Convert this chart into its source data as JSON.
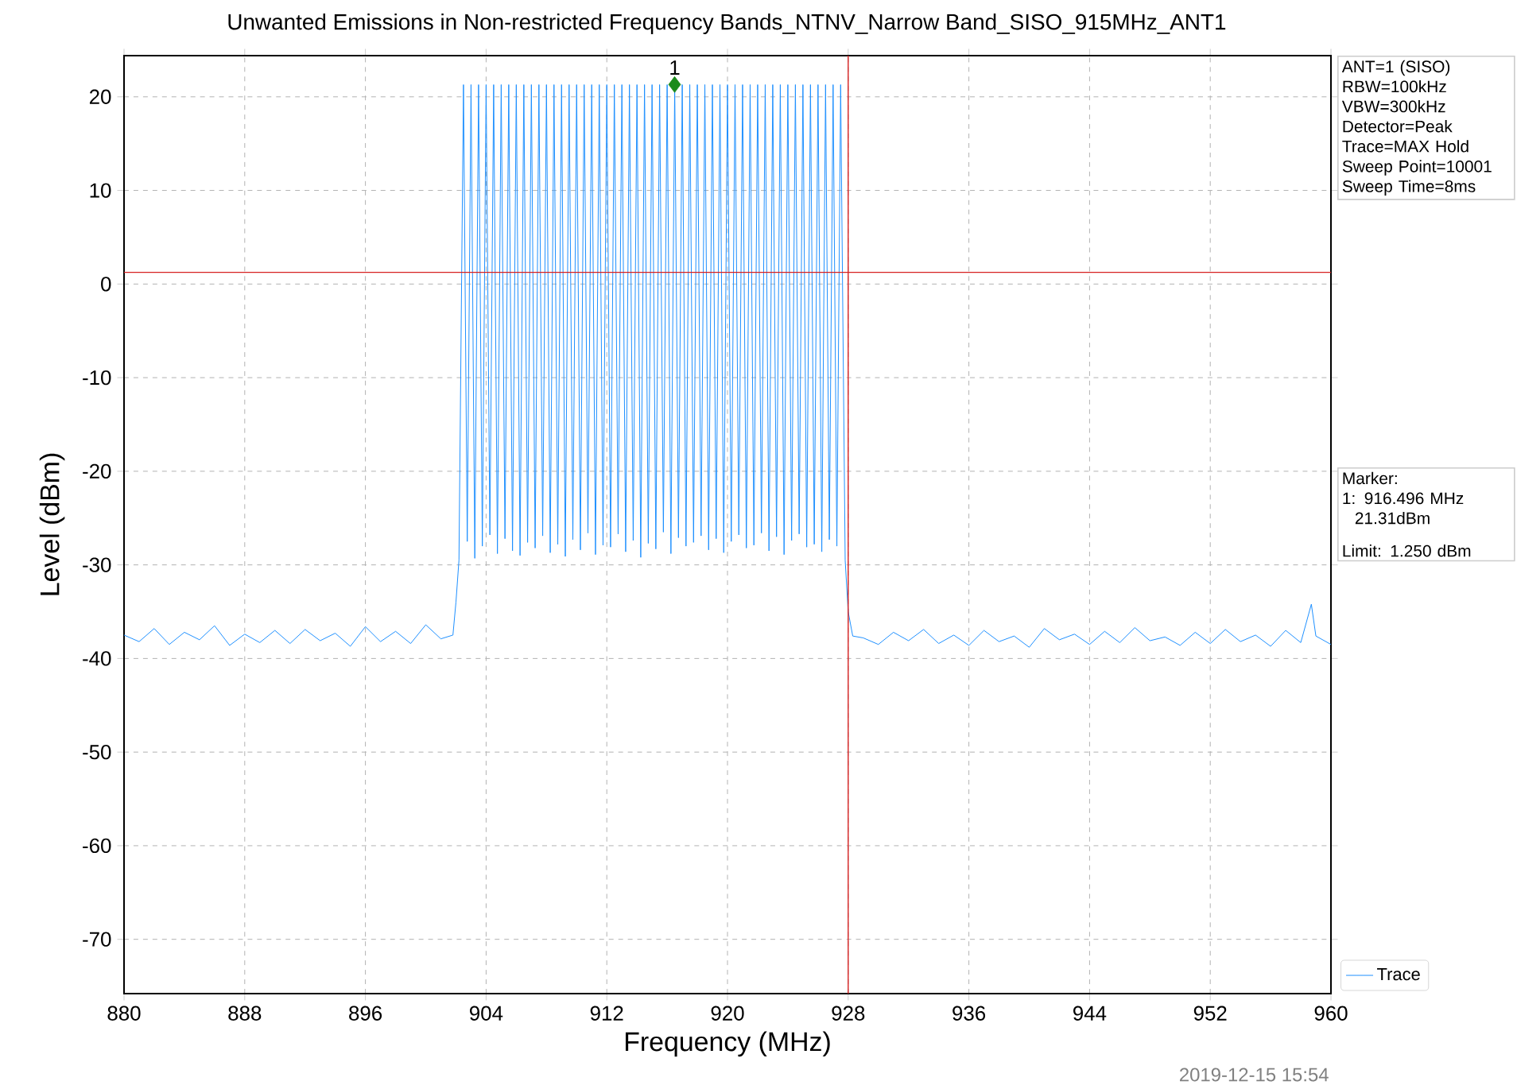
{
  "chart_data": {
    "type": "line",
    "title": "Unwanted Emissions in Non-restricted Frequency Bands_NTNV_Narrow Band_SISO_915MHz_ANT1",
    "xlabel": "Frequency (MHz)",
    "ylabel": "Level (dBm)",
    "xlim": [
      880,
      960
    ],
    "ylim": [
      -75.8,
      24.4
    ],
    "xticks": [
      880,
      888,
      896,
      904,
      912,
      920,
      928,
      936,
      944,
      952,
      960
    ],
    "yticks": [
      -70,
      -60,
      -50,
      -40,
      -30,
      -20,
      -10,
      0,
      10,
      20
    ],
    "grid": true,
    "legend": "bottom right",
    "series": [
      {
        "name": "Trace",
        "color": "#1e90ff",
        "x": [
          880,
          881,
          882,
          883,
          884,
          885,
          886,
          887,
          888,
          889,
          890,
          891,
          892,
          893,
          894,
          895,
          896,
          897,
          898,
          899,
          900,
          901,
          901.8,
          902.0,
          902.2,
          902.5,
          902.75,
          903,
          903.25,
          903.5,
          903.75,
          904,
          904.25,
          904.5,
          904.75,
          905,
          905.25,
          905.5,
          905.75,
          906,
          906.25,
          906.5,
          906.75,
          907,
          907.25,
          907.5,
          907.75,
          908,
          908.25,
          908.5,
          908.75,
          909,
          909.25,
          909.5,
          909.75,
          910,
          910.25,
          910.5,
          910.75,
          911,
          911.25,
          911.5,
          911.75,
          912,
          912.25,
          912.5,
          912.75,
          913,
          913.25,
          913.5,
          913.75,
          914,
          914.25,
          914.5,
          914.75,
          915,
          915.25,
          915.5,
          915.75,
          916,
          916.25,
          916.5,
          916.75,
          917,
          917.25,
          917.5,
          917.75,
          918,
          918.25,
          918.5,
          918.75,
          919,
          919.25,
          919.5,
          919.75,
          920,
          920.25,
          920.5,
          920.75,
          921,
          921.25,
          921.5,
          921.75,
          922,
          922.25,
          922.5,
          922.75,
          923,
          923.25,
          923.5,
          923.75,
          924,
          924.25,
          924.5,
          924.75,
          925,
          925.25,
          925.5,
          925.75,
          926,
          926.25,
          926.5,
          926.75,
          927,
          927.25,
          927.5,
          927.8,
          928.0,
          928.3,
          929,
          930,
          931,
          932,
          933,
          934,
          935,
          936,
          937,
          938,
          939,
          940,
          941,
          942,
          943,
          944,
          945,
          946,
          947,
          948,
          949,
          950,
          951,
          952,
          953,
          954,
          955,
          956,
          957,
          958,
          958.7,
          959,
          960
        ],
        "values": [
          -37.5,
          -38.2,
          -36.8,
          -38.5,
          -37.2,
          -38.0,
          -36.5,
          -38.6,
          -37.4,
          -38.3,
          -37.0,
          -38.4,
          -36.9,
          -38.1,
          -37.3,
          -38.7,
          -36.6,
          -38.2,
          -37.1,
          -38.4,
          -36.4,
          -37.9,
          -37.5,
          -34,
          -29.5,
          21.3,
          -27.5,
          21.3,
          -29.3,
          21.3,
          -28.0,
          21.3,
          -26.8,
          21.3,
          -28.8,
          21.3,
          -27.2,
          21.3,
          -28.5,
          21.3,
          -29.0,
          21.3,
          -27.6,
          21.3,
          -28.2,
          21.3,
          -26.9,
          21.3,
          -28.7,
          21.3,
          -27.8,
          21.3,
          -29.1,
          21.3,
          -27.3,
          21.3,
          -28.4,
          21.3,
          -26.6,
          21.3,
          -28.9,
          21.3,
          -27.9,
          21.3,
          -28.1,
          21.3,
          -26.7,
          21.3,
          -28.6,
          21.3,
          -27.4,
          21.3,
          -29.2,
          21.3,
          -27.7,
          21.3,
          -28.3,
          21.3,
          -26.5,
          21.3,
          -28.8,
          21.3,
          -27.1,
          21.3,
          -28.0,
          21.3,
          -27.6,
          21.3,
          -26.9,
          21.3,
          -28.4,
          21.3,
          -27.2,
          21.3,
          -28.7,
          21.3,
          -27.5,
          21.3,
          -26.8,
          21.3,
          -28.2,
          21.3,
          -27.9,
          21.3,
          -26.6,
          21.3,
          -28.5,
          21.3,
          -27.0,
          21.3,
          -28.9,
          21.3,
          -27.4,
          21.3,
          -26.7,
          21.3,
          -28.1,
          21.3,
          -27.8,
          21.3,
          -28.6,
          21.3,
          -27.3,
          21.3,
          -28.0,
          21.3,
          -29.5,
          -35,
          -37.6,
          -37.8,
          -38.5,
          -37.2,
          -38.1,
          -36.9,
          -38.4,
          -37.5,
          -38.6,
          -37.0,
          -38.2,
          -37.6,
          -38.8,
          -36.8,
          -38.0,
          -37.4,
          -38.5,
          -37.1,
          -38.3,
          -36.7,
          -38.1,
          -37.7,
          -38.6,
          -37.2,
          -38.4,
          -36.9,
          -38.2,
          -37.5,
          -38.7,
          -37.0,
          -38.3,
          -34.2,
          -37.6,
          -38.5
        ]
      },
      {
        "type": "scatter",
        "color": "#1a8a1a",
        "marker": "diamond",
        "x": [
          916.496
        ],
        "values": [
          21.31
        ]
      }
    ],
    "ref_lines": [
      {
        "axis": "x",
        "value": 928,
        "color": "#d62020"
      },
      {
        "axis": "y",
        "value": 1.25,
        "color": "#d62020"
      }
    ],
    "annotations": [
      "ANT=1 (SISO)",
      "RBW=100kHz",
      "VBW=300kHz",
      "Detector=Peak",
      "Trace=MAX Hold",
      "Sweep Point=10001",
      "Sweep Time=8ms",
      "Marker:",
      "1: 916.496 MHz",
      "21.31dBm",
      "Limit: 1.250 dBm",
      {
        "text": "1",
        "x": 916.496,
        "y": 21.31
      },
      "2019-12-15 15:54"
    ]
  }
}
